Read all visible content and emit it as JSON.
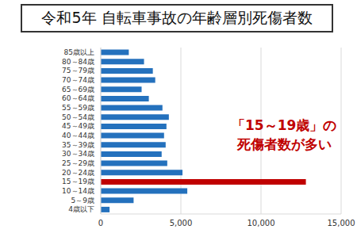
{
  "chart_data": {
    "type": "bar",
    "title": "令和5年 自転車事故の年齢層別死傷者数",
    "orientation": "horizontal",
    "categories": [
      "85歳以上",
      "80～84歳",
      "75～79歳",
      "70～74歳",
      "65～69歳",
      "60～64歳",
      "55～59歳",
      "50～54歳",
      "45～49歳",
      "40～44歳",
      "35～39歳",
      "30～34歳",
      "25～29歳",
      "20～24歳",
      "15～19歳",
      "10～14歳",
      "5～9歳",
      "4歳以下"
    ],
    "values": [
      1750,
      2700,
      3250,
      3400,
      2550,
      3000,
      3850,
      4250,
      4100,
      3950,
      4050,
      3800,
      4150,
      5100,
      12800,
      5400,
      2050,
      550
    ],
    "colors": [
      "#2471bd",
      "#2471bd",
      "#2471bd",
      "#2471bd",
      "#2471bd",
      "#2471bd",
      "#2471bd",
      "#2471bd",
      "#2471bd",
      "#2471bd",
      "#2471bd",
      "#2471bd",
      "#2471bd",
      "#2471bd",
      "#c00000",
      "#2471bd",
      "#2471bd",
      "#2471bd"
    ],
    "xlim": [
      0,
      15000
    ],
    "xticks": [
      0,
      {
        "value": 5000,
        "label": "5,000"
      },
      {
        "value": 10000,
        "label": "10,000"
      },
      {
        "value": 15000,
        "label": "15,000"
      }
    ],
    "grid": true,
    "annotations": [
      "「15～19歳」の",
      "死傷者数が多い"
    ],
    "annotation_color": "#c00000"
  }
}
